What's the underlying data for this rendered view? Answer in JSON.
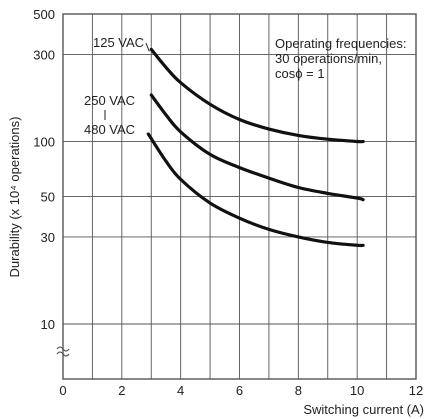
{
  "chart_data": {
    "type": "line",
    "title": "",
    "xlabel": "Switching current (A)",
    "ylabel": "Durability (x 10⁴ operations)",
    "xlim": [
      0,
      12
    ],
    "ylim": [
      10,
      500
    ],
    "y_scale": "log",
    "grid": true,
    "x_ticks": [
      0,
      2,
      4,
      6,
      8,
      10,
      12
    ],
    "y_ticks": [
      10,
      30,
      50,
      100,
      300,
      500
    ],
    "annotation_lines": [
      "Operating frequencies:",
      "30 operations/min,",
      "cosϕ = 1"
    ],
    "series": [
      {
        "name": "125 VAC",
        "x": [
          3,
          3.5,
          4,
          5,
          6,
          7,
          8,
          9,
          10,
          10.2
        ],
        "y": [
          320,
          255,
          210,
          160,
          132,
          117,
          108,
          103,
          100,
          100
        ]
      },
      {
        "name": "250 VAC",
        "x": [
          3,
          3.5,
          4,
          5,
          6,
          7,
          8,
          9,
          10,
          10.2
        ],
        "y": [
          180,
          140,
          113,
          85,
          72,
          63,
          56,
          52,
          49,
          48
        ]
      },
      {
        "name": "480 VAC",
        "x": [
          2.9,
          3.5,
          4,
          5,
          6,
          7,
          8,
          9,
          10,
          10.2
        ],
        "y": [
          110,
          78,
          62,
          46,
          38,
          33,
          30,
          28,
          27,
          27
        ]
      }
    ]
  }
}
